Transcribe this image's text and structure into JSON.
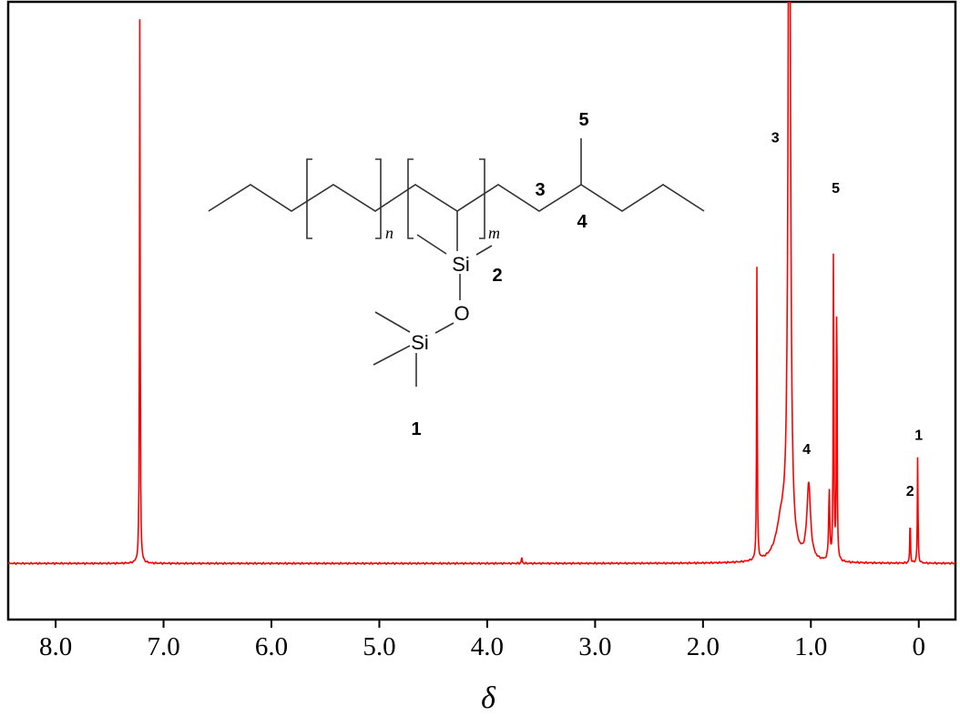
{
  "chart_data": {
    "type": "line",
    "title": "",
    "xlabel": "δ",
    "ylabel": "",
    "xlim": [
      8.44,
      -0.34
    ],
    "x_reversed": true,
    "ylim": [
      -10,
      100
    ],
    "grid": false,
    "line_color": "#ff0000",
    "xticks": [
      8.0,
      7.0,
      6.0,
      5.0,
      4.0,
      3.0,
      2.0,
      1.0,
      0
    ],
    "xtick_labels": [
      "8.0",
      "7.0",
      "6.0",
      "5.0",
      "4.0",
      "3.0",
      "2.0",
      "1.0",
      "0"
    ],
    "peaks": [
      {
        "shift": 7.22,
        "intensity": 97
      },
      {
        "shift": 3.68,
        "intensity": 1.2
      },
      {
        "shift": 1.5,
        "intensity": 53
      },
      {
        "shift": 1.27,
        "intensity": 7
      },
      {
        "shift": 1.2,
        "intensity": 150
      },
      {
        "shift": 1.02,
        "intensity": 13.5
      },
      {
        "shift": 0.83,
        "intensity": 12.5
      },
      {
        "shift": 0.79,
        "intensity": 61
      },
      {
        "shift": 0.76,
        "intensity": 53
      },
      {
        "shift": 0.08,
        "intensity": 8.3
      },
      {
        "shift": 0.01,
        "intensity": 19
      }
    ],
    "annotations": [
      {
        "text": "3",
        "shift": 1.33,
        "intensity": 75
      },
      {
        "text": "5",
        "shift": 0.77,
        "intensity": 66
      },
      {
        "text": "4",
        "shift": 1.04,
        "intensity": 19.5
      },
      {
        "text": "2",
        "shift": 0.08,
        "intensity": 12
      },
      {
        "text": "1",
        "shift": 0.0,
        "intensity": 22
      }
    ]
  },
  "structure": {
    "atoms": {
      "si_upper": "Si",
      "oxygen": "O",
      "si_lower": "Si"
    },
    "subscripts": {
      "n": "n",
      "m": "m"
    },
    "labels": {
      "l1": "1",
      "l2": "2",
      "l3": "3",
      "l4": "4",
      "l5": "5"
    }
  }
}
